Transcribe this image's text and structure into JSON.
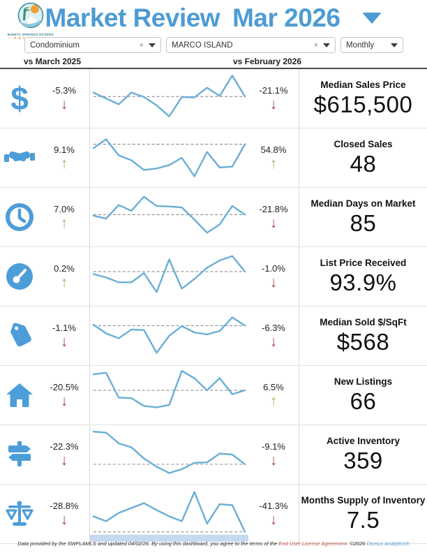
{
  "header": {
    "title": "Market Review",
    "period": "Mar 2026",
    "logo_line1": "BONITA SPRINGS ESTERO",
    "logo_line2": "— R E A L T O R S —"
  },
  "filters": {
    "property_type": "Condominium",
    "location": "MARCO ISLAND",
    "frequency": "Monthly",
    "clear_glyph": "×"
  },
  "column_headers": {
    "left": "vs March 2025",
    "right": "vs February 2026"
  },
  "icons": {
    "dollar_glyph": "$"
  },
  "rows": [
    {
      "icon": "dollar-sign",
      "metric": "Median Sales Price",
      "value": "$615,500",
      "vs_prior_year": {
        "change": "-5.3%",
        "direction": "down"
      },
      "vs_prior_month": {
        "change": "-21.1%",
        "direction": "down"
      }
    },
    {
      "icon": "handshake",
      "metric": "Closed Sales",
      "value": "48",
      "vs_prior_year": {
        "change": "9.1%",
        "direction": "up"
      },
      "vs_prior_month": {
        "change": "54.8%",
        "direction": "up"
      }
    },
    {
      "icon": "clock",
      "metric": "Median Days on Market",
      "value": "85",
      "vs_prior_year": {
        "change": "7.0%",
        "direction": "up"
      },
      "vs_prior_month": {
        "change": "-21.8%",
        "direction": "down"
      }
    },
    {
      "icon": "gauge",
      "metric": "List Price Received",
      "value": "93.9%",
      "vs_prior_year": {
        "change": "0.2%",
        "direction": "up"
      },
      "vs_prior_month": {
        "change": "-1.0%",
        "direction": "down"
      }
    },
    {
      "icon": "price-tag",
      "metric": "Median Sold $/SqFt",
      "value": "$568",
      "vs_prior_year": {
        "change": "-1.1%",
        "direction": "down"
      },
      "vs_prior_month": {
        "change": "-6.3%",
        "direction": "down"
      }
    },
    {
      "icon": "house",
      "metric": "New Listings",
      "value": "66",
      "vs_prior_year": {
        "change": "-20.5%",
        "direction": "down"
      },
      "vs_prior_month": {
        "change": "6.5%",
        "direction": "up"
      }
    },
    {
      "icon": "signpost",
      "metric": "Active Inventory",
      "value": "359",
      "vs_prior_year": {
        "change": "-22.3%",
        "direction": "down"
      },
      "vs_prior_month": {
        "change": "-9.1%",
        "direction": "down"
      }
    },
    {
      "icon": "balance-scale",
      "metric": "Months Supply of Inventory",
      "value": "7.5",
      "vs_prior_year": {
        "change": "-28.8%",
        "direction": "down"
      },
      "vs_prior_month": {
        "change": "-41.3%",
        "direction": "down"
      }
    }
  ],
  "chart_data": [
    {
      "type": "line",
      "metric": "Median Sales Price",
      "x_desc": "13 monthly points, Mar 2025 - Mar 2026 (no axis labels shown)",
      "unit": "relative height 0-100, estimated from pixels",
      "values": [
        62,
        50,
        38,
        62,
        53,
        36,
        13,
        53,
        52,
        72,
        55,
        97,
        54
      ],
      "reference_line": 54,
      "reference_style": "dashed, at current-month value"
    },
    {
      "type": "line",
      "metric": "Closed Sales",
      "x_desc": "13 monthly points, Mar 2025 - Mar 2026 (no axis labels shown)",
      "unit": "relative height 0-100, estimated from pixels",
      "values": [
        70,
        88,
        55,
        45,
        25,
        28,
        35,
        50,
        12,
        62,
        30,
        32,
        78
      ],
      "reference_line": 78,
      "reference_style": "dashed, at current-month value"
    },
    {
      "type": "line",
      "metric": "Median Days on Market",
      "x_desc": "13 monthly points, Mar 2025 - Mar 2026 (no axis labels shown)",
      "unit": "relative height 0-100, estimated from pixels",
      "values": [
        53,
        47,
        75,
        63,
        92,
        73,
        72,
        70,
        45,
        18,
        35,
        73,
        55
      ],
      "reference_line": 55,
      "reference_style": "dashed, at current-month value"
    },
    {
      "type": "line",
      "metric": "List Price Received",
      "x_desc": "13 monthly points, Mar 2025 - Mar 2026 (no axis labels shown)",
      "unit": "relative height 0-100, estimated from pixels",
      "values": [
        55,
        48,
        38,
        38,
        57,
        18,
        85,
        25,
        45,
        68,
        83,
        92,
        60
      ],
      "reference_line": 60,
      "reference_style": "dashed, at current-month value"
    },
    {
      "type": "line",
      "metric": "Median Sold $/SqFt",
      "x_desc": "13 monthly points, Mar 2025 - Mar 2026 (no axis labels shown)",
      "unit": "relative height 0-100, estimated from pixels",
      "values": [
        73,
        55,
        45,
        63,
        62,
        15,
        50,
        70,
        57,
        53,
        60,
        88,
        71
      ],
      "reference_line": 71,
      "reference_style": "dashed, at current-month value"
    },
    {
      "type": "line",
      "metric": "New Listings",
      "x_desc": "13 monthly points, Mar 2025 - Mar 2026 (no axis labels shown)",
      "unit": "relative height 0-100, estimated from pixels",
      "values": [
        93,
        96,
        45,
        44,
        28,
        25,
        30,
        100,
        85,
        60,
        85,
        52,
        60
      ],
      "reference_line": 60,
      "reference_style": "dashed, at current-month value"
    },
    {
      "type": "line",
      "metric": "Active Inventory",
      "x_desc": "13 monthly points, Mar 2025 - Mar 2026 (no axis labels shown)",
      "unit": "relative height 0-100, estimated from pixels",
      "values": [
        97,
        95,
        73,
        65,
        42,
        25,
        12,
        20,
        33,
        34,
        52,
        50,
        30
      ],
      "reference_line": 30,
      "reference_style": "dashed, at current-month value"
    },
    {
      "type": "line",
      "metric": "Months Supply of Inventory",
      "x_desc": "13 monthly points, Mar 2025 - Mar 2026 (no axis labels shown)",
      "unit": "relative height 0-100, estimated from pixels",
      "values": [
        45,
        35,
        52,
        62,
        72,
        58,
        45,
        35,
        95,
        30,
        70,
        68,
        13
      ],
      "reference_line": 13,
      "reference_style": "dashed, at current-month value",
      "band_below_reference": true
    }
  ],
  "footer": {
    "text_before_link": "Data provided by the SWFLAMLS and updated 04/02/26.  By using this dashboard, you agree to the terms of the ",
    "link": "End User License Agreement.",
    "text_after_link": "  ©2026 ",
    "brand": "Domus Analytics®"
  },
  "colors": {
    "title_blue": "#4e9bd4",
    "icon_blue": "#4d9dd8",
    "sparkline": "#6aaed6",
    "reference_line": "#7f7f7f",
    "up_green": "#9aba5e",
    "down_red": "#a8423f",
    "band_light_blue": "#c6d9f0"
  }
}
